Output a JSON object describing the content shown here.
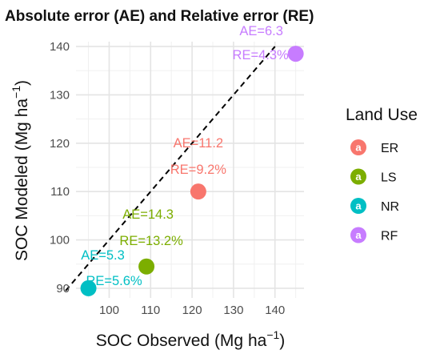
{
  "chart_data": {
    "type": "scatter",
    "title": "Absolute error (AE) and Relative error (RE)",
    "xlabel": "SOC Observed (Mg ha",
    "ylabel": "SOC Modeled (Mg ha",
    "unit_exponent": "−1",
    "xlim": [
      92,
      147
    ],
    "ylim": [
      88,
      141
    ],
    "xticks": [
      100,
      110,
      120,
      130,
      140
    ],
    "yticks": [
      90,
      100,
      110,
      120,
      130,
      140
    ],
    "grid": true,
    "reference_line": "1:1",
    "legend": {
      "title": "Land Use",
      "position": "right",
      "entries": [
        {
          "label": "ER",
          "color": "#F8766D"
        },
        {
          "label": "LS",
          "color": "#7CAE00"
        },
        {
          "label": "NR",
          "color": "#00BFC4"
        },
        {
          "label": "RF",
          "color": "#C77CFF"
        }
      ]
    },
    "series": [
      {
        "name": "ER",
        "color": "#F8766D",
        "x": 121.5,
        "y": 110.0,
        "ae": "AE=11.2",
        "re": "RE=9.2%"
      },
      {
        "name": "LS",
        "color": "#7CAE00",
        "x": 109.0,
        "y": 94.5,
        "ae": "AE=14.3",
        "re": "RE=13.2%"
      },
      {
        "name": "NR",
        "color": "#00BFC4",
        "x": 95.0,
        "y": 90.0,
        "ae": "AE=5.3",
        "re": "RE=5.6%"
      },
      {
        "name": "RF",
        "color": "#C77CFF",
        "x": 145.0,
        "y": 138.5,
        "ae": "AE=6.3",
        "re": "RE=4.3%"
      }
    ]
  }
}
